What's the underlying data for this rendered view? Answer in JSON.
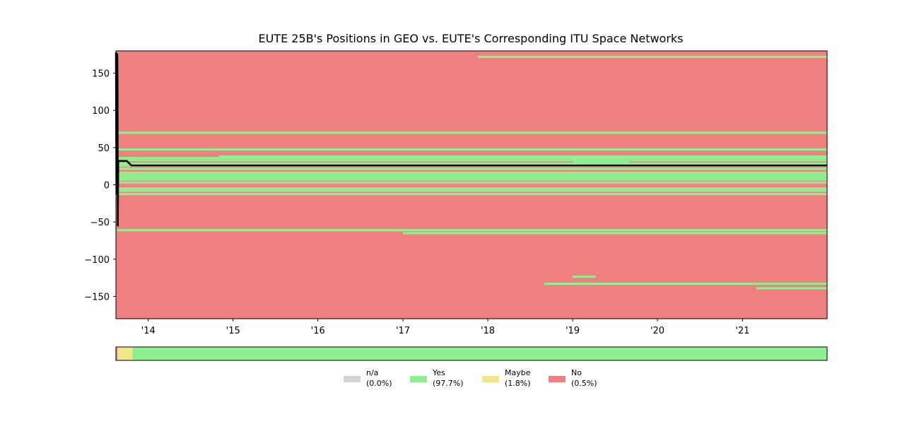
{
  "chart_data": {
    "type": "line",
    "title": "EUTE 25B's Positions in GEO vs. EUTE's Corresponding ITU Space Networks",
    "xlabel": "",
    "ylabel": "",
    "x_range": [
      "2013-08-15",
      "2021-12-31"
    ],
    "ylim": [
      -180,
      180
    ],
    "x_ticks": [
      {
        "date": "2014-01-01",
        "label": "'14"
      },
      {
        "date": "2015-01-01",
        "label": "'15"
      },
      {
        "date": "2016-01-01",
        "label": "'16"
      },
      {
        "date": "2017-01-01",
        "label": "'17"
      },
      {
        "date": "2018-01-01",
        "label": "'18"
      },
      {
        "date": "2019-01-01",
        "label": "'19"
      },
      {
        "date": "2020-01-01",
        "label": "'20"
      },
      {
        "date": "2021-01-01",
        "label": "'21"
      }
    ],
    "y_ticks": [
      150,
      100,
      50,
      0,
      -50,
      -100,
      -150
    ],
    "y_tick_labels": [
      "150",
      "100",
      "50",
      "0",
      "−50",
      "−100",
      "−150"
    ],
    "grid": false,
    "background_category": "No",
    "colors": {
      "n/a": "#d3d3d3",
      "Yes": "#90ee90",
      "Maybe": "#f0e68c",
      "No": "#f08080",
      "position_line": "#000000"
    },
    "network_bands": [
      {
        "lon": 172,
        "start": "2017-11-20",
        "end": "2021-12-31"
      },
      {
        "lon": 70,
        "start": "2013-08-20",
        "end": "2021-12-31"
      },
      {
        "lon": 47.5,
        "start": "2013-08-20",
        "end": "2021-12-31"
      },
      {
        "lon": 38,
        "start": "2014-11-01",
        "end": "2021-12-31"
      },
      {
        "lon": 36,
        "start": "2013-08-20",
        "end": "2021-12-31"
      },
      {
        "lon": 33,
        "start": "2013-08-20",
        "end": "2021-12-31"
      },
      {
        "lon": 31,
        "start": "2019-01-01",
        "end": "2019-09-01"
      },
      {
        "lon": 28.5,
        "start": "2013-08-20",
        "end": "2021-12-31"
      },
      {
        "lon": 25.5,
        "start": "2013-08-20",
        "end": "2021-12-31"
      },
      {
        "lon": 21.5,
        "start": "2013-08-20",
        "end": "2021-12-31"
      },
      {
        "lon": 16,
        "start": "2013-08-20",
        "end": "2021-12-31"
      },
      {
        "lon": 13,
        "start": "2013-08-20",
        "end": "2021-12-31"
      },
      {
        "lon": 10,
        "start": "2013-08-20",
        "end": "2021-12-31"
      },
      {
        "lon": 7,
        "start": "2013-08-20",
        "end": "2021-12-31"
      },
      {
        "lon": 3,
        "start": "2013-08-20",
        "end": "2021-12-31"
      },
      {
        "lon": -5,
        "start": "2013-08-20",
        "end": "2021-12-31"
      },
      {
        "lon": -8,
        "start": "2013-08-20",
        "end": "2021-12-31"
      },
      {
        "lon": -12.5,
        "start": "2013-08-20",
        "end": "2021-12-31"
      },
      {
        "lon": -61,
        "start": "2013-08-20",
        "end": "2021-12-31"
      },
      {
        "lon": -65,
        "start": "2017-01-01",
        "end": "2021-12-31"
      },
      {
        "lon": -123.5,
        "start": "2019-01-01",
        "end": "2019-04-10"
      },
      {
        "lon": -133,
        "start": "2018-09-01",
        "end": "2021-12-31"
      },
      {
        "lon": -139,
        "start": "2021-03-01",
        "end": "2021-12-31"
      }
    ],
    "position_series": {
      "name": "",
      "points": [
        {
          "date": "2013-08-15",
          "lon": 178
        },
        {
          "date": "2013-08-17",
          "lon": -12
        },
        {
          "date": "2013-08-19",
          "lon": 176
        },
        {
          "date": "2013-08-21",
          "lon": 175
        },
        {
          "date": "2013-08-22",
          "lon": 130
        },
        {
          "date": "2013-08-23",
          "lon": -55
        },
        {
          "date": "2013-08-25",
          "lon": 32
        },
        {
          "date": "2013-10-01",
          "lon": 32
        },
        {
          "date": "2013-10-20",
          "lon": 26
        },
        {
          "date": "2021-12-31",
          "lon": 26
        }
      ]
    },
    "status_timeline": [
      {
        "category": "No",
        "start": "2013-08-15",
        "end": "2013-08-22"
      },
      {
        "category": "Maybe",
        "start": "2013-08-22",
        "end": "2013-10-25"
      },
      {
        "category": "Yes",
        "start": "2013-10-25",
        "end": "2021-12-31"
      }
    ],
    "legend": {
      "placement": "bottom-center",
      "entries": [
        {
          "category": "n/a",
          "line1": "n/a",
          "line2": "(0.0%)",
          "percent": 0.0
        },
        {
          "category": "Yes",
          "line1": "Yes",
          "line2": "(97.7%)",
          "percent": 97.7
        },
        {
          "category": "Maybe",
          "line1": "Maybe",
          "line2": "(1.8%)",
          "percent": 1.8
        },
        {
          "category": "No",
          "line1": "No",
          "line2": "(0.5%)",
          "percent": 0.5
        }
      ]
    }
  }
}
